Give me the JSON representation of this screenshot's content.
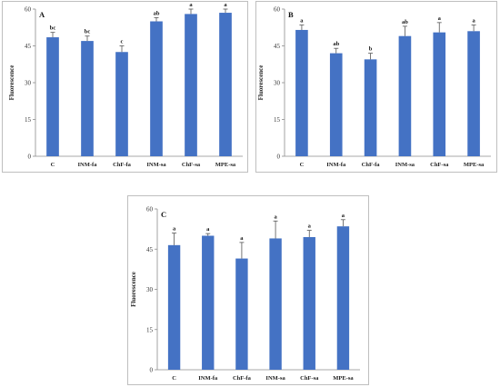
{
  "chart_data": [
    {
      "type": "bar",
      "title": "A",
      "ylabel": "Fluorescence",
      "ylim": [
        0,
        60
      ],
      "yticks": [
        "0",
        "15",
        "30",
        "45",
        "60"
      ],
      "categories": [
        "C",
        "INM-fa",
        "ChF-fa",
        "INM-sa",
        "ChF-sa",
        "MPE-sa"
      ],
      "values": [
        48.5,
        47,
        42.5,
        55,
        58,
        58.5
      ],
      "errors": [
        2,
        2,
        2.5,
        1.5,
        2,
        2
      ],
      "significance": [
        "bc",
        "bc",
        "c",
        "ab",
        "a",
        "a"
      ],
      "bar_color": "#4472C4"
    },
    {
      "type": "bar",
      "title": "B",
      "ylabel": "Fluorescence",
      "ylim": [
        0,
        60
      ],
      "yticks": [
        "0",
        "15",
        "30",
        "45",
        "60"
      ],
      "categories": [
        "C",
        "INM-fa",
        "ChF-fa",
        "INM-sa",
        "ChF-sa",
        "MPE-sa"
      ],
      "values": [
        51.5,
        42,
        39.5,
        49,
        50.5,
        51
      ],
      "errors": [
        2,
        2,
        2.5,
        4,
        4,
        2.5
      ],
      "significance": [
        "a",
        "ab",
        "b",
        "ab",
        "a",
        "a"
      ],
      "bar_color": "#4472C4"
    },
    {
      "type": "bar",
      "title": "C",
      "ylabel": "Fluorescence",
      "ylim": [
        0,
        60
      ],
      "yticks": [
        "0",
        "15",
        "30",
        "45",
        "60"
      ],
      "categories": [
        "C",
        "INM-fa",
        "ChF-fa",
        "INM-sa",
        "ChF-sa",
        "MPE-sa"
      ],
      "values": [
        46.5,
        50,
        41.5,
        49,
        49.5,
        53.5
      ],
      "errors": [
        4.5,
        0.8,
        6,
        6.5,
        2.5,
        2.5
      ],
      "significance": [
        "a",
        "a",
        "a",
        "a",
        "a",
        "a"
      ],
      "bar_color": "#4472C4"
    }
  ]
}
